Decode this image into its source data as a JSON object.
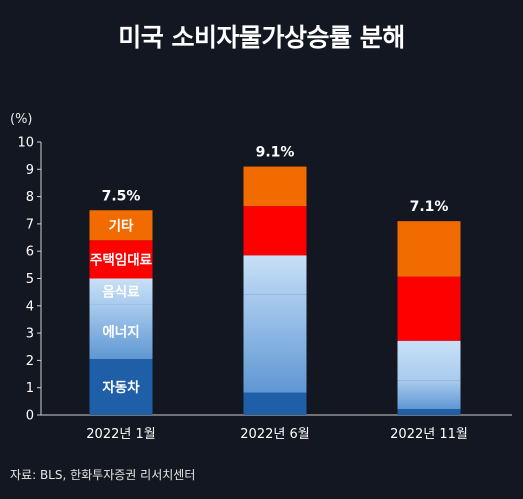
{
  "chart_data": {
    "type": "bar",
    "stacked": true,
    "title": "미국 소비자물가상승률 분해",
    "ylabel": "(%)",
    "source": "자료: BLS, 한화투자증권 리서치센터",
    "ylim": [
      0,
      10
    ],
    "yticks": [
      0,
      1,
      2,
      3,
      4,
      5,
      6,
      7,
      8,
      9,
      10
    ],
    "categories": [
      "2022년  1월",
      "2022년  6월",
      "2022년  11월"
    ],
    "totals": [
      "7.5%",
      "9.1%",
      "7.1%"
    ],
    "series": [
      {
        "name": "자동차",
        "color": "#1e5fa8",
        "values": [
          2.05,
          0.82,
          0.22
        ]
      },
      {
        "name": "에너지",
        "color": "#7fb0e2",
        "values": [
          2.0,
          3.58,
          1.05
        ]
      },
      {
        "name": "음식료",
        "color": "#bcd8f3",
        "values": [
          0.95,
          1.45,
          1.45
        ]
      },
      {
        "name": "주택임대료",
        "color": "#ff0000",
        "values": [
          1.4,
          1.8,
          2.35
        ]
      },
      {
        "name": "기타",
        "color": "#f26b00",
        "values": [
          1.1,
          1.45,
          2.03
        ]
      }
    ]
  }
}
